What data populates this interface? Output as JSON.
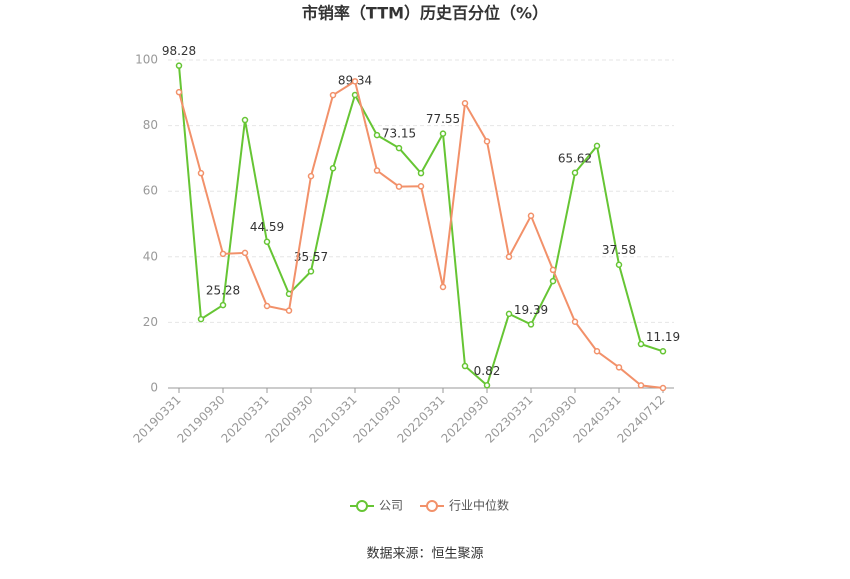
{
  "chart_data": {
    "type": "line",
    "title": "市销率（TTM）历史百分位（%）",
    "source": "数据来源：恒生聚源",
    "categories": [
      "20190331",
      null,
      "20190930",
      null,
      "20200331",
      null,
      "20200930",
      null,
      "20210331",
      null,
      "20210930",
      null,
      "20220331",
      null,
      "20220930",
      null,
      "20230331",
      null,
      "20230930",
      null,
      "20240331",
      null,
      "20240712"
    ],
    "series": [
      {
        "name": "公司",
        "color": "#66c534",
        "values": [
          98.28,
          21,
          25.28,
          81.7,
          44.59,
          28.7,
          35.57,
          67,
          89.34,
          77.1,
          73.15,
          65.5,
          77.55,
          6.7,
          0.82,
          22.6,
          19.39,
          32.6,
          65.62,
          73.8,
          37.58,
          13.4,
          11.19
        ],
        "value_labels": [
          "98.28",
          null,
          "25.28",
          null,
          "44.59",
          null,
          "35.57",
          null,
          "89.34",
          null,
          "73.15",
          null,
          "77.55",
          null,
          "0.82",
          null,
          "19.39",
          null,
          "65.62",
          null,
          "37.58",
          null,
          "11.19"
        ]
      },
      {
        "name": "行业中位数",
        "color": "#f2916a",
        "values": [
          90.2,
          65.5,
          40.9,
          41.2,
          25,
          23.6,
          64.6,
          89.3,
          93.5,
          66.3,
          61.4,
          61.5,
          30.8,
          86.8,
          75.2,
          40,
          52.5,
          36,
          20.2,
          11.2,
          6.3,
          0.8,
          0
        ]
      }
    ],
    "ylim": [
      0,
      100
    ],
    "yticks": [
      0,
      20,
      40,
      60,
      80,
      100
    ],
    "grid": true
  }
}
